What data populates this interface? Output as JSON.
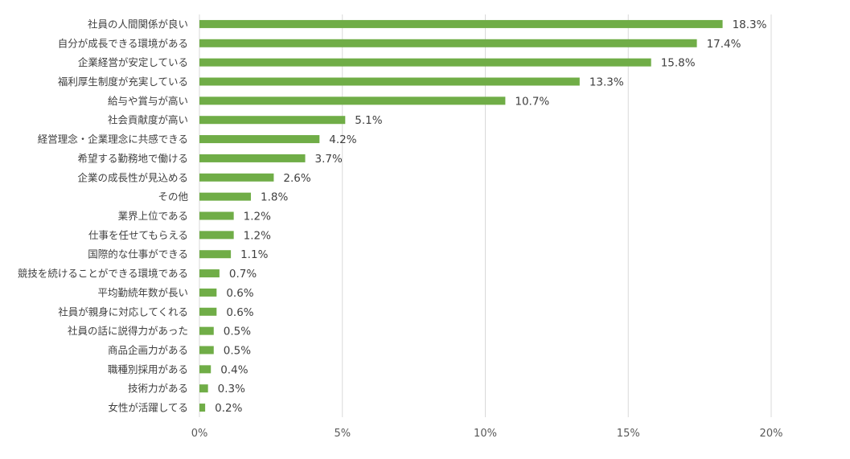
{
  "chart_data": {
    "type": "bar",
    "orientation": "horizontal",
    "categories": [
      "社員の人間関係が良い",
      "自分が成長できる環境がある",
      "企業経営が安定している",
      "福利厚生制度が充実している",
      "給与や賞与が高い",
      "社会貢献度が高い",
      "経営理念・企業理念に共感できる",
      "希望する勤務地で働ける",
      "企業の成長性が見込める",
      "その他",
      "業界上位である",
      "仕事を任せてもらえる",
      "国際的な仕事ができる",
      "競技を続けることができる環境である",
      "平均勤続年数が長い",
      "社員が親身に対応してくれる",
      "社員の話に説得力があった",
      "商品企画力がある",
      "職種別採用がある",
      "技術力がある",
      "女性が活躍してる"
    ],
    "values": [
      18.3,
      17.4,
      15.8,
      13.3,
      10.7,
      5.1,
      4.2,
      3.7,
      2.6,
      1.8,
      1.2,
      1.2,
      1.1,
      0.7,
      0.6,
      0.6,
      0.5,
      0.5,
      0.4,
      0.3,
      0.2
    ],
    "value_labels": [
      "18.3%",
      "17.4%",
      "15.8%",
      "13.3%",
      "10.7%",
      "5.1%",
      "4.2%",
      "3.7%",
      "2.6%",
      "1.8%",
      "1.2%",
      "1.2%",
      "1.1%",
      "0.7%",
      "0.6%",
      "0.6%",
      "0.5%",
      "0.5%",
      "0.4%",
      "0.3%",
      "0.2%"
    ],
    "xlim": [
      0,
      20
    ],
    "xticks": [
      0,
      5,
      10,
      15,
      20
    ],
    "xtick_labels": [
      "0%",
      "5%",
      "10%",
      "15%",
      "20%"
    ],
    "grid": true,
    "bar_color": "#70ad47",
    "title": "",
    "xlabel": "",
    "ylabel": ""
  }
}
